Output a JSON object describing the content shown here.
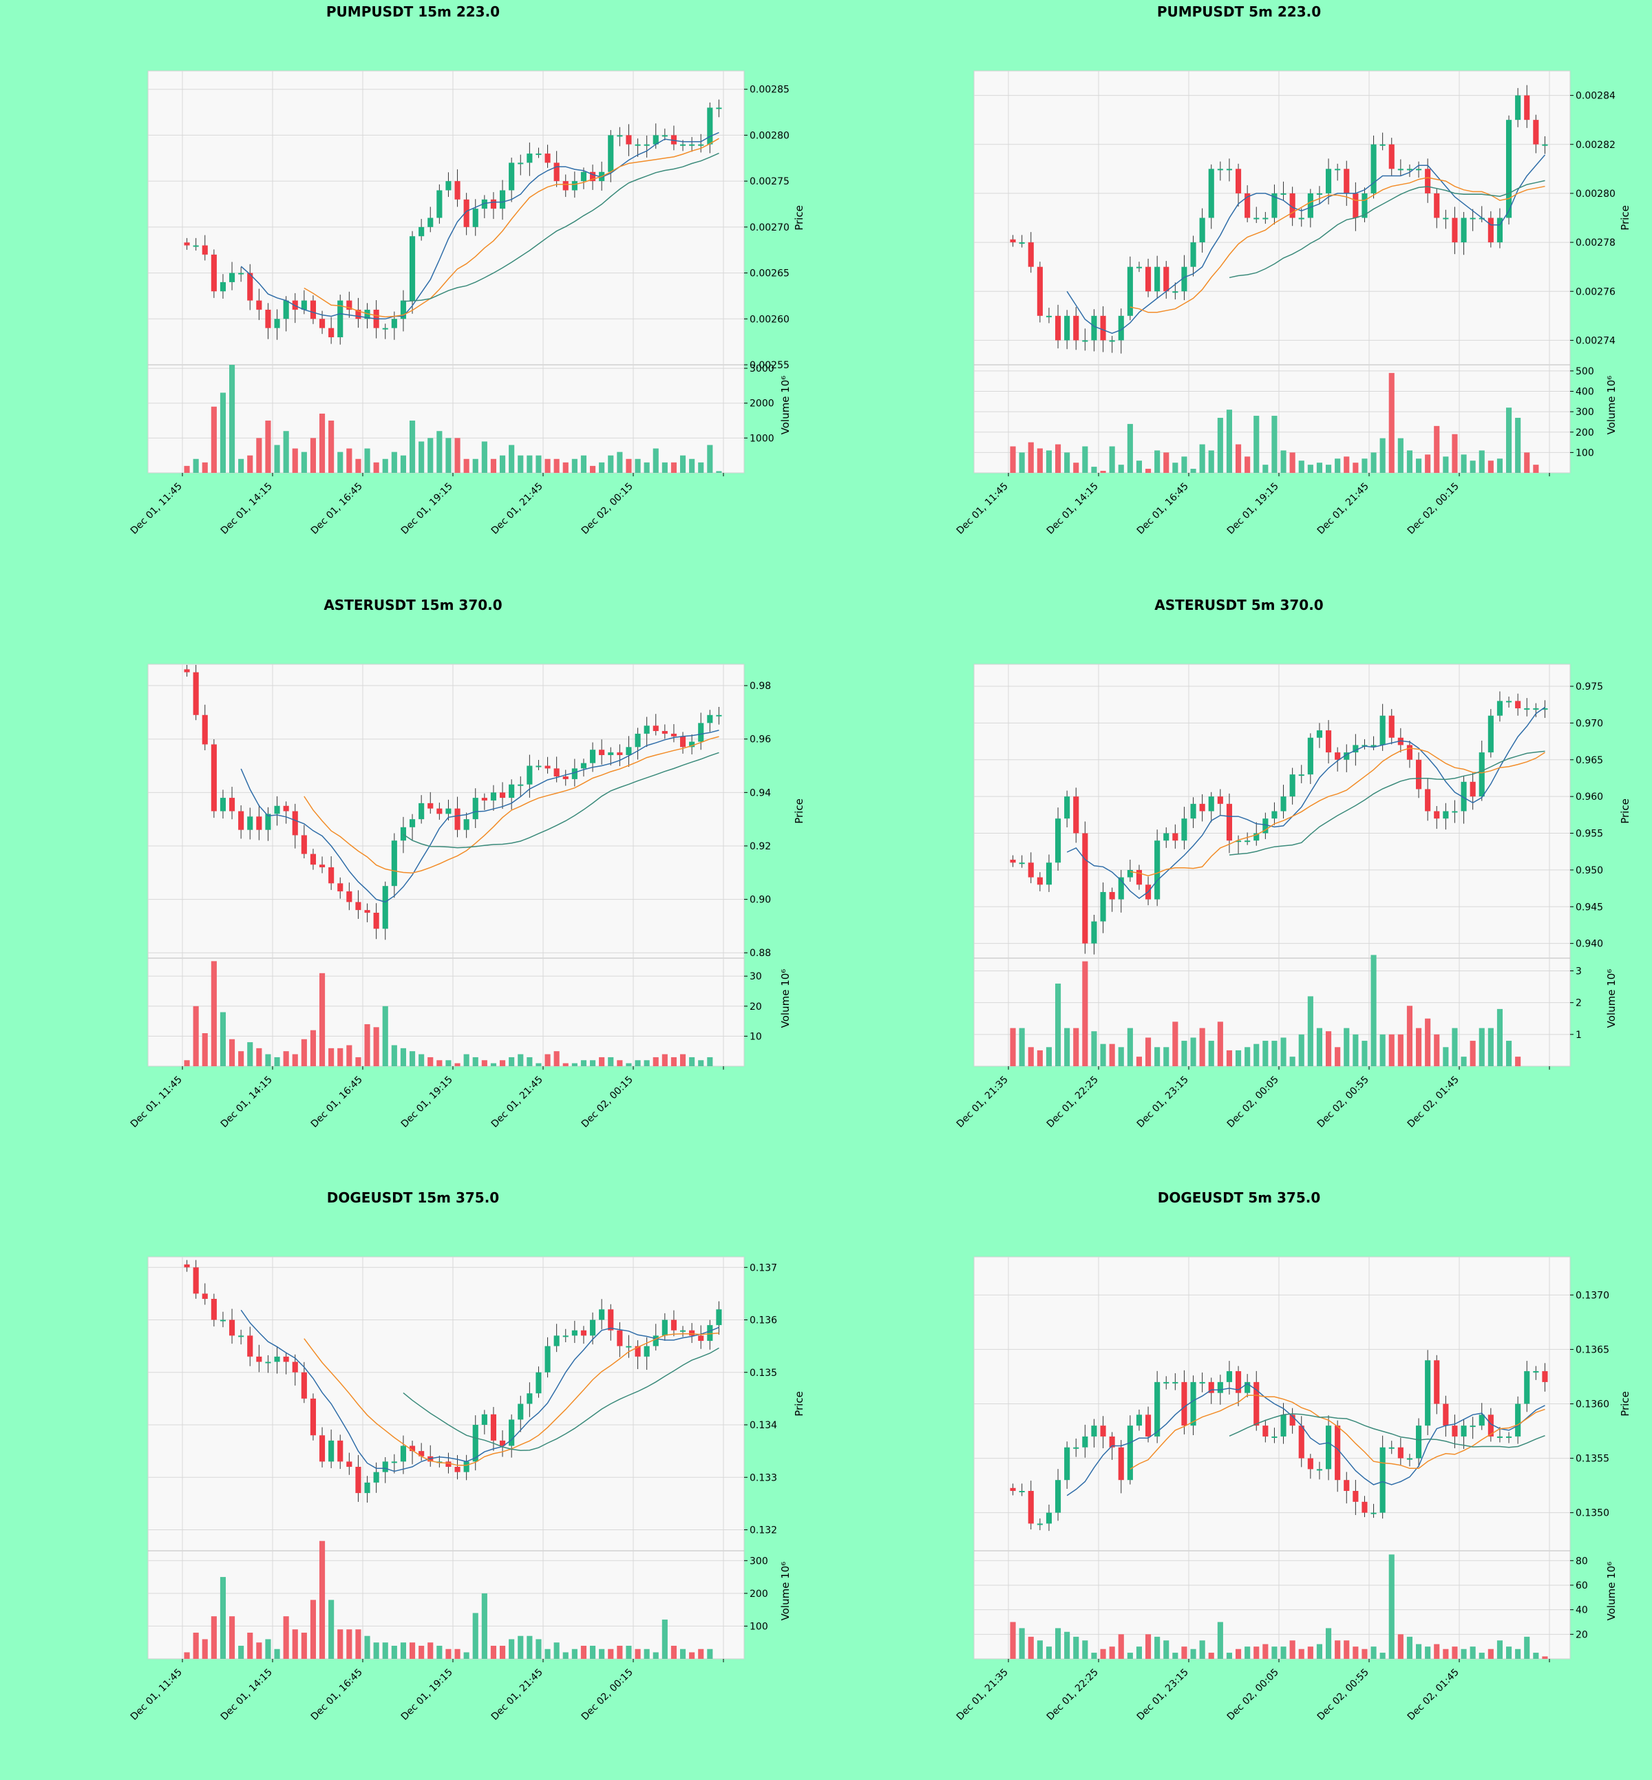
{
  "colors": {
    "background": "#90FFC4",
    "plot_bg": "#F8F8F8",
    "up": "#1DB07F",
    "down": "#EF3A44",
    "up_vol": "#4DC49A",
    "down_vol": "#F0616A",
    "grid": "#D8D8D8",
    "ma_fast": "#2F6DA8",
    "ma_mid": "#F28C28",
    "ma_slow": "#3A8A7A"
  },
  "x_tick_labels": [
    "Dec 01, 11:45",
    "Dec 01, 14:15",
    "Dec 01, 16:45",
    "Dec 01, 19:15",
    "Dec 01, 21:45",
    "Dec 02, 00:15"
  ],
  "x_tick_labels_5m": [
    "Dec 01, 21:35",
    "Dec 01, 22:25",
    "Dec 01, 23:15",
    "Dec 02, 00:05",
    "Dec 02, 00:55",
    "Dec 02, 01:45"
  ],
  "price_label": "Price",
  "volume_label": "Volume",
  "volume_exp": "10⁶",
  "chart_data": [
    {
      "id": "pump15",
      "type": "candlestick",
      "title": "PUMPUSDT 15m 223.0",
      "ylabel": "Price",
      "ylim": [
        0.00255,
        0.00287
      ],
      "yticks": [
        0.00255,
        0.0026,
        0.00265,
        0.0027,
        0.00275,
        0.0028,
        0.00285
      ],
      "ydec": 5,
      "vlim": [
        0,
        3100
      ],
      "vticks": [
        1000,
        2000,
        3000
      ],
      "count": 60,
      "closes": [
        0.00268,
        0.00268,
        0.00267,
        0.00263,
        0.00264,
        0.00265,
        0.00265,
        0.00262,
        0.00261,
        0.00259,
        0.0026,
        0.00262,
        0.00261,
        0.00262,
        0.0026,
        0.00259,
        0.00258,
        0.00262,
        0.00261,
        0.0026,
        0.00261,
        0.00259,
        0.00259,
        0.0026,
        0.00262,
        0.00269,
        0.0027,
        0.00271,
        0.00274,
        0.00275,
        0.00273,
        0.0027,
        0.00272,
        0.00273,
        0.00272,
        0.00274,
        0.00277,
        0.00277,
        0.00278,
        0.00278,
        0.00277,
        0.00275,
        0.00274,
        0.00275,
        0.00276,
        0.00275,
        0.00276,
        0.0028,
        0.0028,
        0.00279,
        0.00279,
        0.00279,
        0.0028,
        0.0028,
        0.00279,
        0.00279,
        0.00279,
        0.00279,
        0.00283,
        0.00283
      ],
      "volumes": [
        200,
        400,
        300,
        1900,
        2300,
        3100,
        400,
        500,
        1000,
        1500,
        800,
        1200,
        700,
        600,
        1000,
        1700,
        1500,
        600,
        700,
        400,
        700,
        300,
        400,
        600,
        500,
        1500,
        900,
        1000,
        1200,
        1000,
        1000,
        400,
        400,
        900,
        400,
        500,
        800,
        500,
        500,
        500,
        400,
        400,
        300,
        400,
        500,
        200,
        300,
        500,
        600,
        400,
        400,
        300,
        700,
        300,
        300,
        500,
        400,
        300,
        800,
        50
      ]
    },
    {
      "id": "pump5",
      "type": "candlestick",
      "title": "PUMPUSDT 5m 223.0",
      "ylabel": "Price",
      "ylim": [
        0.00273,
        0.00285
      ],
      "yticks": [
        0.00274,
        0.00276,
        0.00278,
        0.0028,
        0.00282,
        0.00284
      ],
      "ydec": 5,
      "vlim": [
        0,
        530
      ],
      "vticks": [
        100,
        200,
        300,
        400,
        500
      ],
      "count": 60,
      "closes": [
        0.00278,
        0.00278,
        0.00277,
        0.00275,
        0.00275,
        0.00274,
        0.00275,
        0.00274,
        0.00274,
        0.00275,
        0.00274,
        0.00274,
        0.00275,
        0.00277,
        0.00277,
        0.00276,
        0.00277,
        0.00276,
        0.00276,
        0.00277,
        0.00278,
        0.00279,
        0.00281,
        0.00281,
        0.00281,
        0.0028,
        0.00279,
        0.00279,
        0.00279,
        0.0028,
        0.0028,
        0.00279,
        0.00279,
        0.0028,
        0.0028,
        0.00281,
        0.00281,
        0.0028,
        0.00279,
        0.0028,
        0.00282,
        0.00282,
        0.00281,
        0.00281,
        0.00281,
        0.00281,
        0.0028,
        0.00279,
        0.00279,
        0.00278,
        0.00279,
        0.00279,
        0.00279,
        0.00278,
        0.00279,
        0.00283,
        0.00284,
        0.00283,
        0.00282,
        0.00282
      ],
      "volumes": [
        130,
        100,
        150,
        120,
        110,
        140,
        100,
        50,
        130,
        30,
        10,
        130,
        40,
        240,
        60,
        20,
        110,
        100,
        50,
        80,
        20,
        140,
        110,
        270,
        310,
        140,
        80,
        280,
        40,
        280,
        110,
        100,
        60,
        40,
        50,
        40,
        70,
        80,
        50,
        70,
        100,
        170,
        490,
        170,
        110,
        70,
        90,
        230,
        80,
        190,
        90,
        60,
        110,
        60,
        70,
        320,
        270,
        100,
        40,
        0
      ]
    },
    {
      "id": "aster15",
      "type": "candlestick",
      "title": "ASTERUSDT 15m 370.0",
      "ylabel": "Price",
      "ylim": [
        0.878,
        0.988
      ],
      "yticks": [
        0.88,
        0.9,
        0.92,
        0.94,
        0.96,
        0.98
      ],
      "ydec": 2,
      "vlim": [
        0,
        36
      ],
      "vticks": [
        10,
        20,
        30
      ],
      "count": 60,
      "closes": [
        0.985,
        0.969,
        0.958,
        0.933,
        0.938,
        0.933,
        0.926,
        0.931,
        0.926,
        0.932,
        0.935,
        0.933,
        0.924,
        0.917,
        0.913,
        0.912,
        0.906,
        0.903,
        0.899,
        0.896,
        0.895,
        0.889,
        0.905,
        0.922,
        0.927,
        0.93,
        0.936,
        0.934,
        0.932,
        0.934,
        0.926,
        0.93,
        0.938,
        0.937,
        0.94,
        0.938,
        0.943,
        0.943,
        0.95,
        0.95,
        0.949,
        0.946,
        0.945,
        0.949,
        0.951,
        0.956,
        0.954,
        0.955,
        0.954,
        0.957,
        0.962,
        0.965,
        0.963,
        0.962,
        0.961,
        0.957,
        0.959,
        0.966,
        0.969,
        0.969
      ],
      "volumes": [
        2,
        20,
        11,
        35,
        18,
        9,
        5,
        8,
        6,
        4,
        3,
        5,
        4,
        9,
        12,
        31,
        6,
        6,
        7,
        3,
        14,
        13,
        20,
        7,
        6,
        5,
        4,
        3,
        2,
        2,
        1,
        4,
        3,
        2,
        1,
        2,
        3,
        4,
        3,
        1,
        4,
        5,
        1,
        1,
        2,
        2,
        3,
        3,
        2,
        1,
        2,
        2,
        3,
        4,
        3,
        4,
        3,
        2,
        3,
        0
      ]
    },
    {
      "id": "aster5",
      "type": "candlestick",
      "title": "ASTERUSDT 5m 370.0",
      "ylabel": "Price",
      "ylim": [
        0.938,
        0.978
      ],
      "yticks": [
        0.94,
        0.945,
        0.95,
        0.955,
        0.96,
        0.965,
        0.97,
        0.975
      ],
      "ydec": 3,
      "vlim": [
        0,
        3.4
      ],
      "vticks": [
        1,
        2,
        3
      ],
      "count": 60,
      "closes": [
        0.951,
        0.951,
        0.949,
        0.948,
        0.951,
        0.957,
        0.96,
        0.955,
        0.94,
        0.943,
        0.947,
        0.946,
        0.949,
        0.95,
        0.948,
        0.946,
        0.954,
        0.955,
        0.954,
        0.957,
        0.959,
        0.958,
        0.96,
        0.959,
        0.954,
        0.954,
        0.954,
        0.955,
        0.957,
        0.958,
        0.96,
        0.963,
        0.963,
        0.968,
        0.969,
        0.966,
        0.965,
        0.966,
        0.967,
        0.967,
        0.967,
        0.971,
        0.968,
        0.967,
        0.965,
        0.961,
        0.958,
        0.957,
        0.958,
        0.958,
        0.962,
        0.96,
        0.966,
        0.971,
        0.973,
        0.973,
        0.972,
        0.972,
        0.972,
        0.972
      ],
      "volumes": [
        1.2,
        1.2,
        0.6,
        0.5,
        0.6,
        2.6,
        1.2,
        1.2,
        3.3,
        1.1,
        0.7,
        0.7,
        0.6,
        1.2,
        0.3,
        0.9,
        0.6,
        0.6,
        1.4,
        0.8,
        0.9,
        1.2,
        0.8,
        1.4,
        0.5,
        0.5,
        0.6,
        0.7,
        0.8,
        0.8,
        0.9,
        0.3,
        1.0,
        2.2,
        1.2,
        1.1,
        0.6,
        1.2,
        1.0,
        0.8,
        3.5,
        1.0,
        1.0,
        1.0,
        1.9,
        1.2,
        1.5,
        1.0,
        0.6,
        1.2,
        0.3,
        0.8,
        1.2,
        1.2,
        1.8,
        0.8,
        0.3,
        0,
        0,
        0
      ],
      "x_labels_key": "5m"
    },
    {
      "id": "doge15",
      "type": "candlestick",
      "title": "DOGEUSDT 15m 375.0",
      "ylabel": "Price",
      "ylim": [
        0.1316,
        0.1372
      ],
      "yticks": [
        0.132,
        0.133,
        0.134,
        0.135,
        0.136,
        0.137
      ],
      "ydec": 3,
      "vlim": [
        0,
        330
      ],
      "vticks": [
        100,
        200,
        300
      ],
      "count": 60,
      "closes": [
        0.137,
        0.1365,
        0.1364,
        0.136,
        0.136,
        0.1357,
        0.1357,
        0.1353,
        0.1352,
        0.1352,
        0.1353,
        0.1352,
        0.135,
        0.1345,
        0.1338,
        0.1333,
        0.1337,
        0.1333,
        0.1332,
        0.1327,
        0.1329,
        0.1331,
        0.1333,
        0.1333,
        0.1336,
        0.1335,
        0.1334,
        0.1333,
        0.1333,
        0.1332,
        0.1331,
        0.1333,
        0.134,
        0.1342,
        0.1337,
        0.1336,
        0.1341,
        0.1344,
        0.1346,
        0.135,
        0.1355,
        0.1357,
        0.1357,
        0.1358,
        0.1357,
        0.136,
        0.1362,
        0.1358,
        0.1355,
        0.1355,
        0.1353,
        0.1355,
        0.1357,
        0.136,
        0.1358,
        0.1358,
        0.1357,
        0.1356,
        0.1359,
        0.1362
      ],
      "volumes": [
        20,
        80,
        60,
        130,
        250,
        130,
        40,
        80,
        50,
        60,
        30,
        130,
        90,
        80,
        180,
        360,
        180,
        90,
        90,
        90,
        70,
        50,
        50,
        40,
        50,
        50,
        40,
        50,
        40,
        30,
        30,
        20,
        140,
        200,
        40,
        40,
        60,
        70,
        70,
        60,
        30,
        50,
        20,
        30,
        40,
        40,
        30,
        30,
        40,
        40,
        30,
        30,
        20,
        120,
        40,
        30,
        20,
        30,
        30,
        0
      ]
    },
    {
      "id": "doge5",
      "type": "candlestick",
      "title": "DOGEUSDT 5m 375.0",
      "ylabel": "Price",
      "ylim": [
        0.13465,
        0.13735
      ],
      "yticks": [
        0.135,
        0.1355,
        0.136,
        0.1365,
        0.137
      ],
      "ydec": 4,
      "vlim": [
        0,
        88
      ],
      "vticks": [
        20,
        40,
        60,
        80
      ],
      "count": 60,
      "closes": [
        0.1352,
        0.1352,
        0.1349,
        0.1349,
        0.135,
        0.1353,
        0.1356,
        0.1356,
        0.1357,
        0.1358,
        0.1357,
        0.1356,
        0.1353,
        0.1358,
        0.1359,
        0.1357,
        0.1362,
        0.1362,
        0.1362,
        0.1358,
        0.1362,
        0.1362,
        0.1361,
        0.1362,
        0.1363,
        0.1361,
        0.1362,
        0.1358,
        0.1357,
        0.1357,
        0.1359,
        0.1358,
        0.1355,
        0.1354,
        0.1354,
        0.1358,
        0.1353,
        0.1352,
        0.1351,
        0.135,
        0.135,
        0.1356,
        0.1356,
        0.1355,
        0.1355,
        0.1358,
        0.1364,
        0.136,
        0.1358,
        0.1357,
        0.1358,
        0.1358,
        0.1359,
        0.1357,
        0.1357,
        0.1357,
        0.136,
        0.1363,
        0.1363,
        0.1362
      ],
      "volumes": [
        30,
        25,
        18,
        15,
        10,
        25,
        22,
        18,
        15,
        5,
        8,
        10,
        20,
        5,
        10,
        20,
        18,
        15,
        5,
        10,
        8,
        15,
        5,
        30,
        5,
        8,
        10,
        10,
        12,
        10,
        10,
        15,
        8,
        10,
        12,
        25,
        15,
        15,
        10,
        8,
        10,
        5,
        85,
        20,
        18,
        12,
        10,
        12,
        8,
        10,
        8,
        10,
        5,
        8,
        15,
        10,
        8,
        18,
        5,
        2
      ],
      "x_labels_key": "5m"
    }
  ]
}
